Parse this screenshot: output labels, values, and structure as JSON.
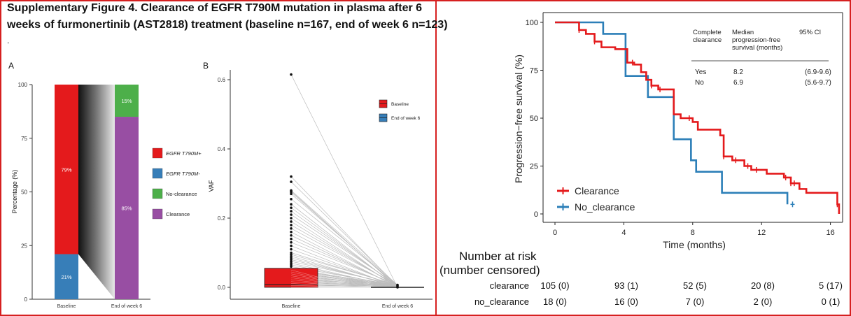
{
  "figure": {
    "title_line1": "Supplementary Figure 4. Clearance of EGFR T790M mutation in plasma after 6",
    "title_line2": "weeks of furmonertinib (AST2818) treatment (baseline n=167, end of week 6 n=123)",
    "stray_mark": "."
  },
  "colors": {
    "red": "#e41a1c",
    "blue": "#377eb8",
    "green": "#4daf4a",
    "purple": "#984ea3",
    "km_red": "#e41a1c",
    "km_blue": "#2c7fb8",
    "frame": "#d62020"
  },
  "panel_a": {
    "label": "A",
    "ylabel": "Percentage (%)",
    "yticks": [
      "0",
      "25",
      "50",
      "75",
      "100"
    ],
    "categories": [
      "Baseline",
      "End of week 6"
    ],
    "legend": [
      "EGFR T790M+",
      "EGFR T790M-",
      "No-clearance",
      "Clearance"
    ]
  },
  "panel_b": {
    "label": "B",
    "ylabel": "VAF",
    "yticks": [
      "0.0",
      "0.2",
      "0.4",
      "0.6"
    ],
    "categories": [
      "Baseline",
      "End of week 6"
    ],
    "legend": [
      "Baseline",
      "End of week 6"
    ]
  },
  "panel_c": {
    "ylabel": "Progression−free survival (%)",
    "xlabel": "Time (months)",
    "yticks": [
      "0",
      "25",
      "50",
      "75",
      "100"
    ],
    "xticks": [
      "0",
      "4",
      "8",
      "12",
      "16"
    ],
    "legend": [
      "Clearance",
      "No_clearance"
    ],
    "table": {
      "headers": [
        "Complete clearance",
        "Median progression-free survival (months)",
        "95% CI"
      ],
      "rows": [
        [
          "Yes",
          "8.2",
          "(6.9-9.6)"
        ],
        [
          "No",
          "6.9",
          "(5.6-9.7)"
        ]
      ]
    },
    "risk_title_1": "Number at risk",
    "risk_title_2": "(number censored)",
    "risk_rows": [
      {
        "name": "clearance",
        "values": [
          "105 (0)",
          "93 (1)",
          "52 (5)",
          "20 (8)",
          "5 (17)"
        ]
      },
      {
        "name": "no_clearance",
        "values": [
          "18 (0)",
          "16 (0)",
          "7 (0)",
          "2 (0)",
          "0 (1)"
        ]
      }
    ]
  },
  "chart_data": [
    {
      "type": "bar",
      "stacked": true,
      "categories": [
        "Baseline",
        "End of week 6"
      ],
      "series": [
        {
          "name": "EGFR T790M+",
          "values": [
            79,
            null
          ]
        },
        {
          "name": "EGFR T790M-",
          "values": [
            21,
            null
          ]
        },
        {
          "name": "No-clearance",
          "values": [
            null,
            15
          ]
        },
        {
          "name": "Clearance",
          "values": [
            null,
            85
          ]
        }
      ],
      "data_labels": {
        "EGFR T790M+": "79%",
        "EGFR T790M-": "21%",
        "No-clearance": "15%",
        "Clearance": "85%"
      },
      "ylabel": "Percentage (%)",
      "ylim": [
        0,
        100
      ],
      "legend_position": "right"
    },
    {
      "type": "scatter",
      "categories": [
        "Baseline",
        "End of week 6"
      ],
      "boxplot": {
        "Baseline": {
          "q1": 0.0,
          "median": 0.008,
          "q3": 0.055
        },
        "End of week 6": {
          "q1": 0.0,
          "median": 0.0,
          "q3": 0.0
        }
      },
      "baseline_outliers": [
        0.615,
        0.32,
        0.305,
        0.28,
        0.278,
        0.275,
        0.27,
        0.255,
        0.24,
        0.23,
        0.22,
        0.21,
        0.2,
        0.19,
        0.18,
        0.17,
        0.16,
        0.15,
        0.14,
        0.13,
        0.12,
        0.11,
        0.1,
        0.095,
        0.09,
        0.085,
        0.08,
        0.075,
        0.07,
        0.065,
        0.06
      ],
      "end_values": [
        0.0,
        0.002,
        0.005,
        0.007
      ],
      "ylabel": "VAF",
      "ylim": [
        0,
        0.65
      ],
      "legend_position": "top-right"
    },
    {
      "type": "line",
      "step": true,
      "xlabel": "Time (months)",
      "ylabel": "Progression−free survival (%)",
      "xlim": [
        0,
        16.5
      ],
      "ylim": [
        0,
        100
      ],
      "series": [
        {
          "name": "Clearance",
          "x": [
            0,
            1.4,
            1.8,
            2.3,
            2.7,
            3.5,
            4.2,
            4.6,
            5.0,
            5.3,
            5.6,
            6.0,
            6.9,
            7.3,
            8.0,
            8.3,
            9.6,
            9.8,
            10.3,
            11.0,
            11.4,
            12.3,
            13.3,
            13.7,
            14.2,
            14.6,
            16.4,
            16.5
          ],
          "y": [
            100,
            96,
            94,
            90,
            87,
            86,
            79,
            78,
            74,
            70,
            67,
            65,
            52,
            50,
            48,
            44,
            41,
            30,
            28,
            25,
            23,
            21,
            19,
            16,
            13,
            11,
            5,
            0
          ]
        },
        {
          "name": "No_clearance",
          "x": [
            0,
            2.8,
            4.1,
            5.4,
            6.9,
            7.9,
            8.2,
            9.7,
            13.5
          ],
          "y": [
            100,
            94,
            72,
            61,
            39,
            28,
            22,
            11,
            5
          ]
        }
      ],
      "censor_clearance": [
        1.4,
        2.3,
        4.5,
        5.6,
        6.1,
        7.8,
        9.8,
        10.5,
        11.2,
        11.7,
        13.4,
        13.7,
        13.9,
        16.4
      ],
      "censor_no_clearance": [
        13.8
      ],
      "legend_position": "bottom-left"
    }
  ]
}
